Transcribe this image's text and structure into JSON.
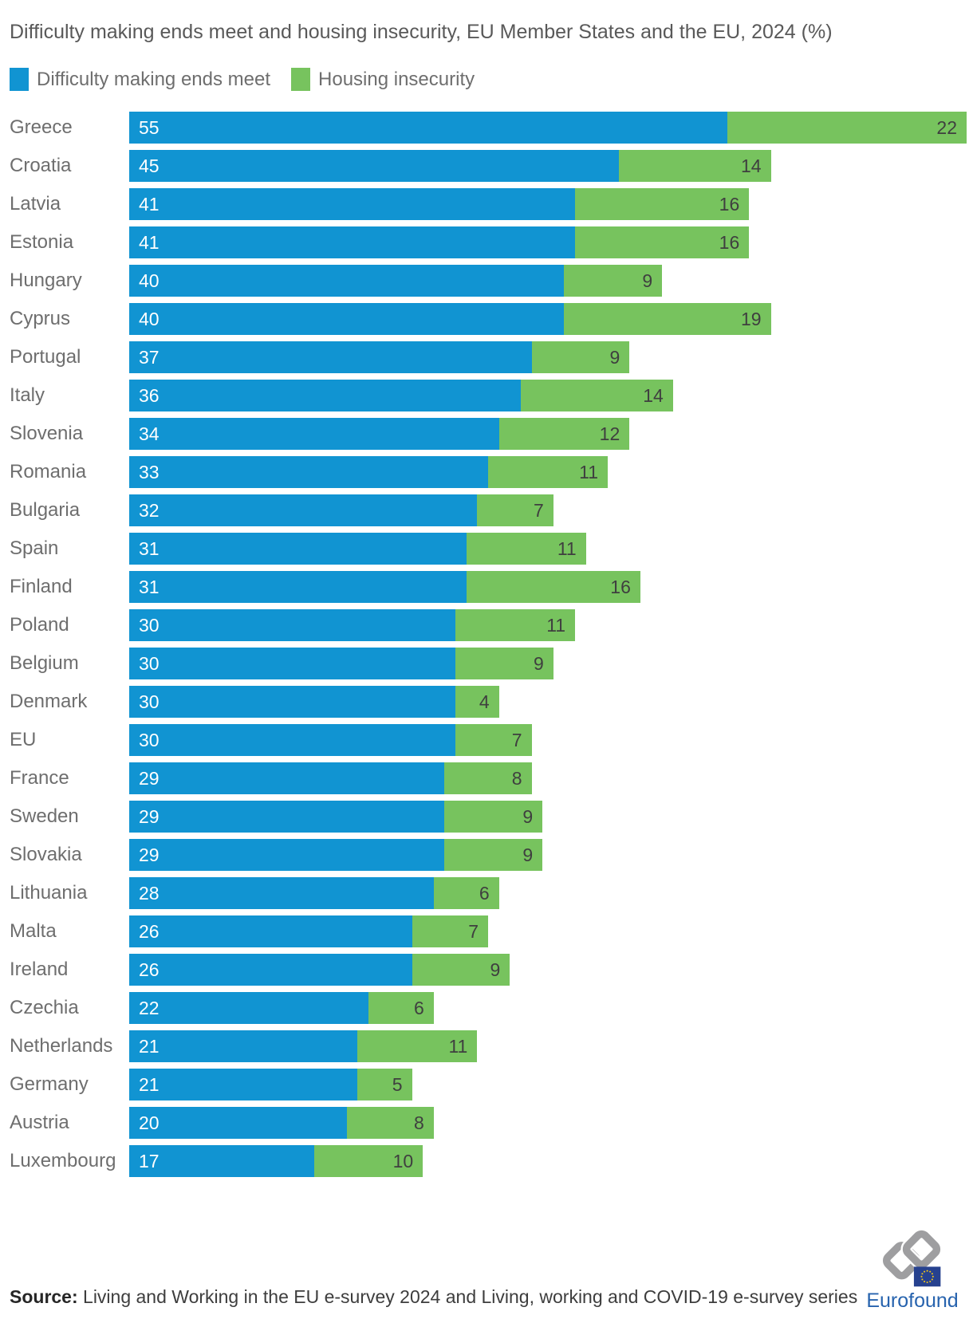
{
  "title": "Difficulty making ends meet and housing insecurity, EU Member States and the EU, 2024 (%)",
  "legend": [
    {
      "label": "Difficulty making ends meet",
      "color": "#1194D2"
    },
    {
      "label": "Housing insecurity",
      "color": "#77C35E"
    }
  ],
  "chart_data": {
    "type": "bar",
    "orientation": "horizontal",
    "stacked": true,
    "grid": false,
    "legend_position": "top-left",
    "value_labels": "inside",
    "title": "Difficulty making ends meet and housing insecurity, EU Member States and the EU, 2024 (%)",
    "xlabel": "",
    "ylabel": "",
    "x_max": 77,
    "categories": [
      "Greece",
      "Croatia",
      "Latvia",
      "Estonia",
      "Hungary",
      "Cyprus",
      "Portugal",
      "Italy",
      "Slovenia",
      "Romania",
      "Bulgaria",
      "Spain",
      "Finland",
      "Poland",
      "Belgium",
      "Denmark",
      "EU",
      "France",
      "Sweden",
      "Slovakia",
      "Lithuania",
      "Malta",
      "Ireland",
      "Czechia",
      "Netherlands",
      "Germany",
      "Austria",
      "Luxembourg"
    ],
    "series": [
      {
        "name": "Difficulty making ends meet",
        "color": "#1194D2",
        "values": [
          55,
          45,
          41,
          41,
          40,
          40,
          37,
          36,
          34,
          33,
          32,
          31,
          31,
          30,
          30,
          30,
          30,
          29,
          29,
          29,
          28,
          26,
          26,
          22,
          21,
          21,
          20,
          17
        ]
      },
      {
        "name": "Housing insecurity",
        "color": "#77C35E",
        "values": [
          22,
          14,
          16,
          16,
          9,
          19,
          9,
          14,
          12,
          11,
          7,
          11,
          16,
          11,
          9,
          4,
          7,
          8,
          9,
          9,
          6,
          7,
          9,
          6,
          11,
          5,
          8,
          10
        ]
      }
    ]
  },
  "source": {
    "label": "Source:",
    "text": " Living and Working in the EU e-survey 2024 and Living, working and COVID-19 e-survey series"
  },
  "logo": {
    "text": "Eurofound",
    "text_color": "#2763AE",
    "mark_color": "#9E9EA0",
    "flag_color": "#26418F",
    "star_color": "#F0C419"
  }
}
